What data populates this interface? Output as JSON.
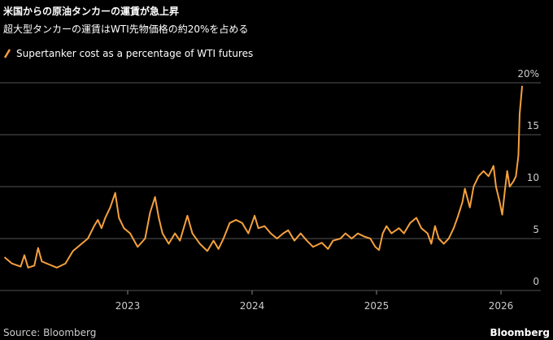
{
  "chart_data": {
    "type": "line",
    "title": "米国からの原油タンカーの運賃が急上昇",
    "subtitle": "超大型タンカーの運賃はWTI先物価格の約20%を占める",
    "source": "Source: Bloomberg",
    "brand": "Bloomberg",
    "x": [
      2022.01,
      2022.07,
      2022.14,
      2022.17,
      2022.2,
      2022.25,
      2022.28,
      2022.31,
      2022.37,
      2022.43,
      2022.5,
      2022.56,
      2022.63,
      2022.68,
      2022.73,
      2022.76,
      2022.79,
      2022.82,
      2022.86,
      2022.9,
      2022.93,
      2022.97,
      2023.02,
      2023.08,
      2023.14,
      2023.18,
      2023.22,
      2023.25,
      2023.28,
      2023.33,
      2023.38,
      2023.42,
      2023.48,
      2023.52,
      2023.58,
      2023.64,
      2023.69,
      2023.73,
      2023.77,
      2023.82,
      2023.87,
      2023.92,
      2023.97,
      2024.02,
      2024.05,
      2024.1,
      2024.15,
      2024.2,
      2024.25,
      2024.29,
      2024.34,
      2024.39,
      2024.44,
      2024.49,
      2024.56,
      2024.61,
      2024.65,
      2024.71,
      2024.75,
      2024.8,
      2024.85,
      2024.9,
      2024.95,
      2024.99,
      2025.02,
      2025.05,
      2025.08,
      2025.12,
      2025.18,
      2025.22,
      2025.27,
      2025.32,
      2025.36,
      2025.41,
      2025.44,
      2025.47,
      2025.5,
      2025.54,
      2025.58,
      2025.62,
      2025.65,
      2025.69,
      2025.71,
      2025.75,
      2025.78,
      2025.82,
      2025.86,
      2025.9,
      2025.94,
      2025.96,
      2025.99,
      2026.01,
      2026.03,
      2026.05,
      2026.07,
      2026.1,
      2026.12,
      2026.14,
      2026.15,
      2026.17
    ],
    "series": [
      {
        "name": "Supertanker cost as a percentage of WTI futures",
        "color": "#f5a03c",
        "values": [
          3.2,
          2.6,
          2.3,
          3.4,
          2.2,
          2.4,
          4.1,
          2.8,
          2.5,
          2.2,
          2.6,
          3.8,
          4.5,
          5.0,
          6.2,
          6.8,
          6.0,
          7.0,
          8.0,
          9.4,
          7.0,
          6.0,
          5.5,
          4.2,
          5.0,
          7.5,
          9.0,
          7.0,
          5.5,
          4.5,
          5.5,
          4.8,
          7.2,
          5.5,
          4.5,
          3.8,
          4.8,
          4.0,
          5.0,
          6.5,
          6.8,
          6.5,
          5.5,
          7.2,
          6.0,
          6.2,
          5.5,
          5.0,
          5.5,
          5.8,
          4.8,
          5.5,
          4.8,
          4.2,
          4.6,
          4.0,
          4.8,
          5.0,
          5.5,
          5.0,
          5.5,
          5.2,
          5.0,
          4.2,
          3.9,
          5.5,
          6.2,
          5.5,
          6.0,
          5.5,
          6.5,
          7.0,
          6.0,
          5.5,
          4.5,
          6.2,
          5.0,
          4.5,
          5.0,
          6.0,
          7.0,
          8.5,
          9.8,
          8.0,
          10.0,
          11.0,
          11.5,
          11.0,
          12.0,
          10.0,
          8.5,
          7.3,
          9.5,
          11.5,
          10.0,
          10.5,
          11.0,
          13.0,
          17.0,
          19.7
        ]
      }
    ],
    "xlim": [
      2021.974,
      2026.32
    ],
    "xticks": [
      2023,
      2024,
      2025,
      2026
    ],
    "ylim": [
      0,
      20
    ],
    "yticks": [
      0,
      5,
      10,
      15,
      {
        "value": 20,
        "label": "20%"
      }
    ],
    "grid": true
  }
}
